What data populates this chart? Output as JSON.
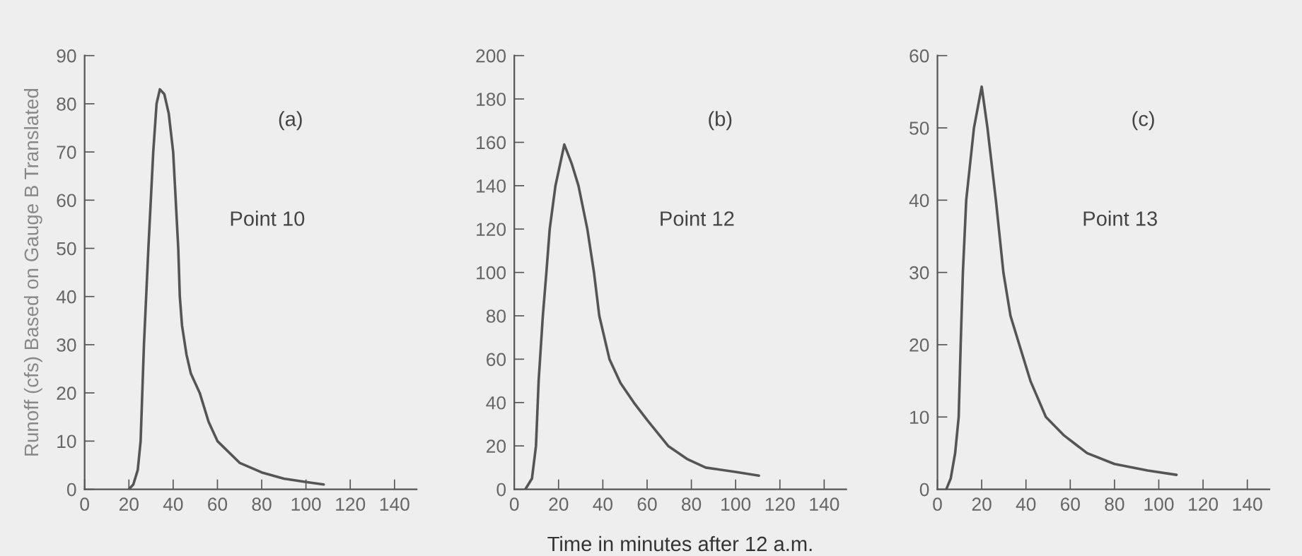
{
  "chart_data": [
    {
      "type": "line",
      "ylabel": "Runoff (cfs) Based on Gauge B Translated",
      "annotations": [
        "(a)",
        "Point 10"
      ],
      "xlim": [
        0,
        150
      ],
      "xticks": [
        0,
        20,
        40,
        60,
        80,
        100,
        120,
        140
      ],
      "ylim": [
        0,
        90
      ],
      "yticks": [
        0,
        10,
        20,
        30,
        40,
        50,
        60,
        70,
        80,
        90
      ],
      "series": [
        {
          "color": "#555555",
          "x": [
            20,
            22,
            24,
            25.3,
            26.8,
            28.8,
            31,
            32.5,
            34,
            36,
            38,
            40,
            42.3,
            43,
            44,
            46,
            48,
            52,
            56,
            60,
            70,
            80,
            90,
            100,
            108
          ],
          "values": [
            0,
            1,
            4,
            10,
            30,
            50,
            70,
            80,
            83,
            82,
            78,
            70,
            50,
            40,
            34,
            28,
            24,
            20,
            14,
            10,
            5.5,
            3.5,
            2.2,
            1.5,
            1
          ]
        }
      ]
    },
    {
      "type": "line",
      "xlabel": "Time in minutes after 12 a.m.",
      "annotations": [
        "(b)",
        "Point 12"
      ],
      "xlim": [
        0,
        150
      ],
      "xticks": [
        0,
        20,
        40,
        60,
        80,
        100,
        120,
        140
      ],
      "ylim": [
        0,
        200
      ],
      "yticks": [
        0,
        20,
        40,
        60,
        80,
        100,
        120,
        140,
        160,
        180,
        200
      ],
      "series": [
        {
          "color": "#555555",
          "x": [
            5,
            8,
            9.8,
            11,
            12.9,
            14.5,
            16,
            18.6,
            22.6,
            26,
            29,
            33,
            36,
            38.4,
            43,
            48,
            54,
            60,
            69.5,
            78,
            86.5,
            100,
            110.5
          ],
          "values": [
            0,
            5,
            20,
            50,
            80,
            100,
            120,
            140,
            159,
            150,
            140,
            120,
            100,
            80,
            60,
            49,
            40,
            32,
            20,
            14,
            10,
            8,
            6.3
          ]
        }
      ]
    },
    {
      "type": "line",
      "annotations": [
        "(c)",
        "Point 13"
      ],
      "xlim": [
        0,
        150
      ],
      "xticks": [
        0,
        20,
        40,
        60,
        80,
        100,
        120,
        140
      ],
      "ylim": [
        0,
        60
      ],
      "yticks": [
        0,
        10,
        20,
        30,
        40,
        50,
        60
      ],
      "series": [
        {
          "color": "#555555",
          "x": [
            4,
            6,
            8,
            9.6,
            10.5,
            11.5,
            13,
            16.5,
            20,
            22.6,
            26.4,
            29.8,
            33,
            37,
            42,
            49,
            57,
            67.6,
            80,
            95,
            108
          ],
          "values": [
            0,
            1.5,
            5,
            10,
            20,
            30,
            40,
            50,
            55.7,
            50,
            40,
            30,
            24,
            20,
            15,
            10,
            7.5,
            5,
            3.5,
            2.6,
            2
          ]
        }
      ]
    }
  ]
}
